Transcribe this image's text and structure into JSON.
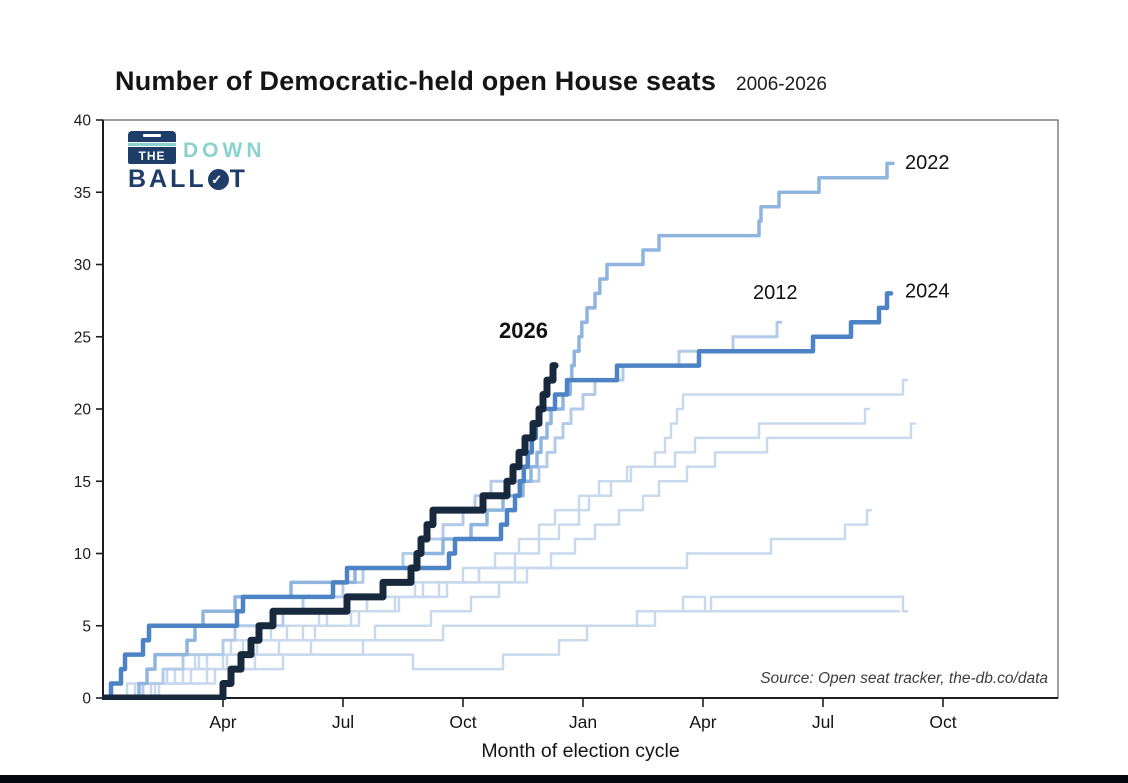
{
  "page": {
    "title_main": "Number of Democratic-held open House seats",
    "title_period": "2006-2026",
    "source_note": "Source: Open seat tracker, the-db.co/data",
    "xaxis_title": "Month of election cycle"
  },
  "logo": {
    "word_the": "THE",
    "word_down": "DOWN",
    "word_ballot_prefix": "BALL",
    "word_ballot_suffix": "T",
    "check_glyph": "✓",
    "navy": "#1e3d69",
    "teal": "#8ad2cf"
  },
  "chart_data": {
    "type": "line",
    "line_style": "step-after",
    "title": "Number of Democratic-held open House seats",
    "subtitle": "2006-2026",
    "xlabel": "Month of election cycle",
    "ylabel": "",
    "ylim": [
      0,
      40
    ],
    "grid": false,
    "y_ticks": [
      0,
      5,
      10,
      15,
      20,
      25,
      30,
      35,
      40
    ],
    "x_ticks": [
      {
        "month": 3,
        "label": "Apr"
      },
      {
        "month": 6,
        "label": "Jul"
      },
      {
        "month": 9,
        "label": "Oct"
      },
      {
        "month": 12,
        "label": "Jan"
      },
      {
        "month": 15,
        "label": "Apr"
      },
      {
        "month": 18,
        "label": "Jul"
      },
      {
        "month": 21,
        "label": "Oct"
      }
    ],
    "x_range_months": [
      0,
      23.9
    ],
    "colors": {
      "faded": "#c8d9ed",
      "s2012": "#b3cbe9",
      "s2022": "#8fb4de",
      "s2024": "#4d82c4",
      "s2026": "#18293e"
    },
    "series": [
      {
        "name": "faded-1",
        "label_visible": false,
        "color": "#c8d9ed",
        "width": 2.5,
        "final_value": 22,
        "points": [
          [
            0,
            0
          ],
          [
            1.2,
            1
          ],
          [
            2.0,
            2
          ],
          [
            3.0,
            3
          ],
          [
            4.4,
            4
          ],
          [
            5.3,
            5
          ],
          [
            6.4,
            6
          ],
          [
            7.4,
            7
          ],
          [
            8.4,
            8
          ],
          [
            9.4,
            9
          ],
          [
            10.3,
            10
          ],
          [
            10.9,
            11
          ],
          [
            11.4,
            12
          ],
          [
            11.9,
            13
          ],
          [
            12.15,
            14
          ],
          [
            12.7,
            15
          ],
          [
            13.2,
            16
          ],
          [
            13.8,
            17
          ],
          [
            14.05,
            18
          ],
          [
            14.2,
            19
          ],
          [
            14.35,
            20
          ],
          [
            14.5,
            21
          ],
          [
            20.0,
            22
          ],
          [
            20.1,
            22
          ]
        ]
      },
      {
        "name": "faded-2",
        "label_visible": false,
        "color": "#c8d9ed",
        "width": 2.5,
        "final_value": 20,
        "points": [
          [
            0,
            0
          ],
          [
            0.8,
            1
          ],
          [
            1.6,
            2
          ],
          [
            2.4,
            3
          ],
          [
            3.5,
            4
          ],
          [
            4.6,
            5
          ],
          [
            5.6,
            6
          ],
          [
            6.6,
            7
          ],
          [
            7.8,
            8
          ],
          [
            9.0,
            9
          ],
          [
            9.8,
            10
          ],
          [
            10.4,
            11
          ],
          [
            10.9,
            12
          ],
          [
            11.3,
            13
          ],
          [
            11.9,
            14
          ],
          [
            12.4,
            15
          ],
          [
            13.1,
            16
          ],
          [
            14.3,
            17
          ],
          [
            14.8,
            18
          ],
          [
            16.4,
            19
          ],
          [
            19.05,
            20
          ],
          [
            19.15,
            20
          ]
        ]
      },
      {
        "name": "faded-3",
        "label_visible": false,
        "color": "#c8d9ed",
        "width": 2.5,
        "final_value": 19,
        "points": [
          [
            0,
            0
          ],
          [
            1.4,
            1
          ],
          [
            2.6,
            2
          ],
          [
            3.8,
            3
          ],
          [
            5.2,
            4
          ],
          [
            6.8,
            5
          ],
          [
            8.2,
            6
          ],
          [
            9.2,
            7
          ],
          [
            9.9,
            8
          ],
          [
            10.6,
            9
          ],
          [
            11.2,
            10
          ],
          [
            11.8,
            11
          ],
          [
            12.3,
            12
          ],
          [
            12.9,
            13
          ],
          [
            13.5,
            14
          ],
          [
            13.9,
            15
          ],
          [
            14.6,
            16
          ],
          [
            15.3,
            17
          ],
          [
            16.6,
            18
          ],
          [
            20.2,
            19
          ],
          [
            20.3,
            19
          ]
        ]
      },
      {
        "name": "faded-4",
        "label_visible": false,
        "color": "#c8d9ed",
        "width": 2.5,
        "final_value": 13,
        "points": [
          [
            0,
            0
          ],
          [
            0.6,
            1
          ],
          [
            1.8,
            2
          ],
          [
            2.6,
            3
          ],
          [
            3.2,
            4
          ],
          [
            4.2,
            5
          ],
          [
            5.4,
            6
          ],
          [
            6.6,
            7
          ],
          [
            8.0,
            8
          ],
          [
            9.4,
            9
          ],
          [
            14.6,
            10
          ],
          [
            16.7,
            11
          ],
          [
            18.55,
            12
          ],
          [
            19.1,
            13
          ],
          [
            19.2,
            13
          ]
        ]
      },
      {
        "name": "faded-5",
        "label_visible": false,
        "color": "#c8d9ed",
        "width": 2.5,
        "final_value": 9,
        "points": [
          [
            0,
            0
          ],
          [
            1.0,
            1
          ],
          [
            2.2,
            2
          ],
          [
            3.1,
            3
          ],
          [
            3.85,
            4
          ],
          [
            5.0,
            5
          ],
          [
            6.2,
            6
          ],
          [
            7.3,
            7
          ],
          [
            8.6,
            8
          ],
          [
            10.3,
            9
          ],
          [
            11.4,
            9
          ]
        ]
      },
      {
        "name": "faded-6",
        "label_visible": false,
        "color": "#c8d9ed",
        "width": 2.5,
        "final_value": 6,
        "points": [
          [
            0,
            0
          ],
          [
            0.9,
            1
          ],
          [
            1.6,
            2
          ],
          [
            2.3,
            3
          ],
          [
            7.75,
            2
          ],
          [
            10.0,
            3
          ],
          [
            11.4,
            4
          ],
          [
            12.1,
            5
          ],
          [
            13.35,
            6
          ],
          [
            14.5,
            7
          ],
          [
            15.05,
            6
          ],
          [
            15.2,
            7
          ],
          [
            20.0,
            6
          ],
          [
            20.1,
            6
          ]
        ]
      },
      {
        "name": "faded-7",
        "label_visible": false,
        "color": "#c8d9ed",
        "width": 2.5,
        "final_value": 6,
        "points": [
          [
            0,
            0
          ],
          [
            1.3,
            1
          ],
          [
            2.8,
            2
          ],
          [
            4.5,
            3
          ],
          [
            6.5,
            4
          ],
          [
            8.5,
            5
          ],
          [
            13.8,
            6
          ],
          [
            19.9,
            6
          ]
        ]
      },
      {
        "name": "2012",
        "label_visible": true,
        "color": "#b3cbe9",
        "width": 3,
        "final_value": 26,
        "points": [
          [
            0,
            0
          ],
          [
            1.0,
            1
          ],
          [
            1.5,
            2
          ],
          [
            2.0,
            3
          ],
          [
            3.0,
            4
          ],
          [
            3.3,
            5
          ],
          [
            4.5,
            6
          ],
          [
            5.0,
            7
          ],
          [
            6.0,
            8
          ],
          [
            6.5,
            9
          ],
          [
            7.5,
            10
          ],
          [
            8.0,
            11
          ],
          [
            8.5,
            12
          ],
          [
            9.0,
            13
          ],
          [
            9.3,
            14
          ],
          [
            9.7,
            15
          ],
          [
            10.9,
            16
          ],
          [
            11.1,
            17
          ],
          [
            11.3,
            18
          ],
          [
            11.5,
            19
          ],
          [
            11.7,
            20
          ],
          [
            12.0,
            21
          ],
          [
            12.3,
            22
          ],
          [
            13.0,
            23
          ],
          [
            14.4,
            24
          ],
          [
            15.75,
            25
          ],
          [
            16.85,
            26
          ],
          [
            16.95,
            26
          ]
        ]
      },
      {
        "name": "2022",
        "label_visible": true,
        "color": "#8fb4de",
        "width": 3.5,
        "final_value": 37,
        "points": [
          [
            0,
            0
          ],
          [
            0.9,
            1
          ],
          [
            1.1,
            2
          ],
          [
            1.3,
            3
          ],
          [
            2.1,
            4
          ],
          [
            2.3,
            5
          ],
          [
            2.5,
            6
          ],
          [
            3.3,
            7
          ],
          [
            4.7,
            8
          ],
          [
            6.3,
            9
          ],
          [
            7.8,
            10
          ],
          [
            8.5,
            11
          ],
          [
            9.2,
            12
          ],
          [
            9.6,
            13
          ],
          [
            10.0,
            14
          ],
          [
            10.5,
            15
          ],
          [
            10.7,
            16
          ],
          [
            10.85,
            17
          ],
          [
            10.95,
            18
          ],
          [
            11.1,
            19
          ],
          [
            11.2,
            20
          ],
          [
            11.5,
            21
          ],
          [
            11.68,
            22
          ],
          [
            11.72,
            23
          ],
          [
            11.78,
            24
          ],
          [
            11.9,
            25
          ],
          [
            11.97,
            26
          ],
          [
            12.1,
            27
          ],
          [
            12.3,
            28
          ],
          [
            12.42,
            29
          ],
          [
            12.6,
            30
          ],
          [
            13.5,
            31
          ],
          [
            13.9,
            32
          ],
          [
            16.4,
            33
          ],
          [
            16.45,
            34
          ],
          [
            16.9,
            35
          ],
          [
            17.9,
            36
          ],
          [
            19.6,
            37
          ],
          [
            19.75,
            37
          ]
        ]
      },
      {
        "name": "2024",
        "label_visible": true,
        "color": "#4d82c4",
        "width": 4.5,
        "final_value": 28,
        "points": [
          [
            0,
            0
          ],
          [
            0.2,
            1
          ],
          [
            0.45,
            2
          ],
          [
            0.55,
            3
          ],
          [
            1.0,
            4
          ],
          [
            1.15,
            5
          ],
          [
            3.35,
            6
          ],
          [
            3.5,
            7
          ],
          [
            5.75,
            8
          ],
          [
            6.1,
            9
          ],
          [
            8.65,
            10
          ],
          [
            8.8,
            11
          ],
          [
            9.95,
            12
          ],
          [
            10.1,
            13
          ],
          [
            10.3,
            14
          ],
          [
            10.42,
            15
          ],
          [
            10.52,
            16
          ],
          [
            10.62,
            17
          ],
          [
            10.72,
            18
          ],
          [
            10.82,
            19
          ],
          [
            10.92,
            20
          ],
          [
            11.3,
            21
          ],
          [
            11.6,
            22
          ],
          [
            12.85,
            23
          ],
          [
            14.9,
            24
          ],
          [
            17.75,
            25
          ],
          [
            18.7,
            26
          ],
          [
            19.4,
            27
          ],
          [
            19.6,
            28
          ],
          [
            19.7,
            28
          ]
        ]
      },
      {
        "name": "2026",
        "label_visible": true,
        "color": "#18293e",
        "width": 7,
        "final_value": 23,
        "points": [
          [
            0,
            0
          ],
          [
            3.0,
            1
          ],
          [
            3.2,
            2
          ],
          [
            3.45,
            3
          ],
          [
            3.7,
            4
          ],
          [
            3.9,
            5
          ],
          [
            4.25,
            6
          ],
          [
            6.1,
            7
          ],
          [
            7.0,
            8
          ],
          [
            7.7,
            9
          ],
          [
            7.85,
            10
          ],
          [
            7.95,
            11
          ],
          [
            8.1,
            12
          ],
          [
            8.25,
            13
          ],
          [
            9.5,
            14
          ],
          [
            10.1,
            15
          ],
          [
            10.25,
            16
          ],
          [
            10.4,
            17
          ],
          [
            10.55,
            18
          ],
          [
            10.75,
            19
          ],
          [
            10.9,
            20
          ],
          [
            11.0,
            21
          ],
          [
            11.1,
            22
          ],
          [
            11.25,
            23
          ],
          [
            11.3,
            23
          ]
        ]
      }
    ],
    "annotations": [
      {
        "text": "2022",
        "month": 20.05,
        "value": 36.6,
        "bold": false,
        "size": 20
      },
      {
        "text": "2024",
        "month": 20.05,
        "value": 27.7,
        "bold": false,
        "size": 20
      },
      {
        "text": "2012",
        "month": 16.25,
        "value": 27.6,
        "bold": false,
        "size": 20
      },
      {
        "text": "2026",
        "month": 9.9,
        "value": 24.9,
        "bold": true,
        "size": 22
      }
    ]
  }
}
